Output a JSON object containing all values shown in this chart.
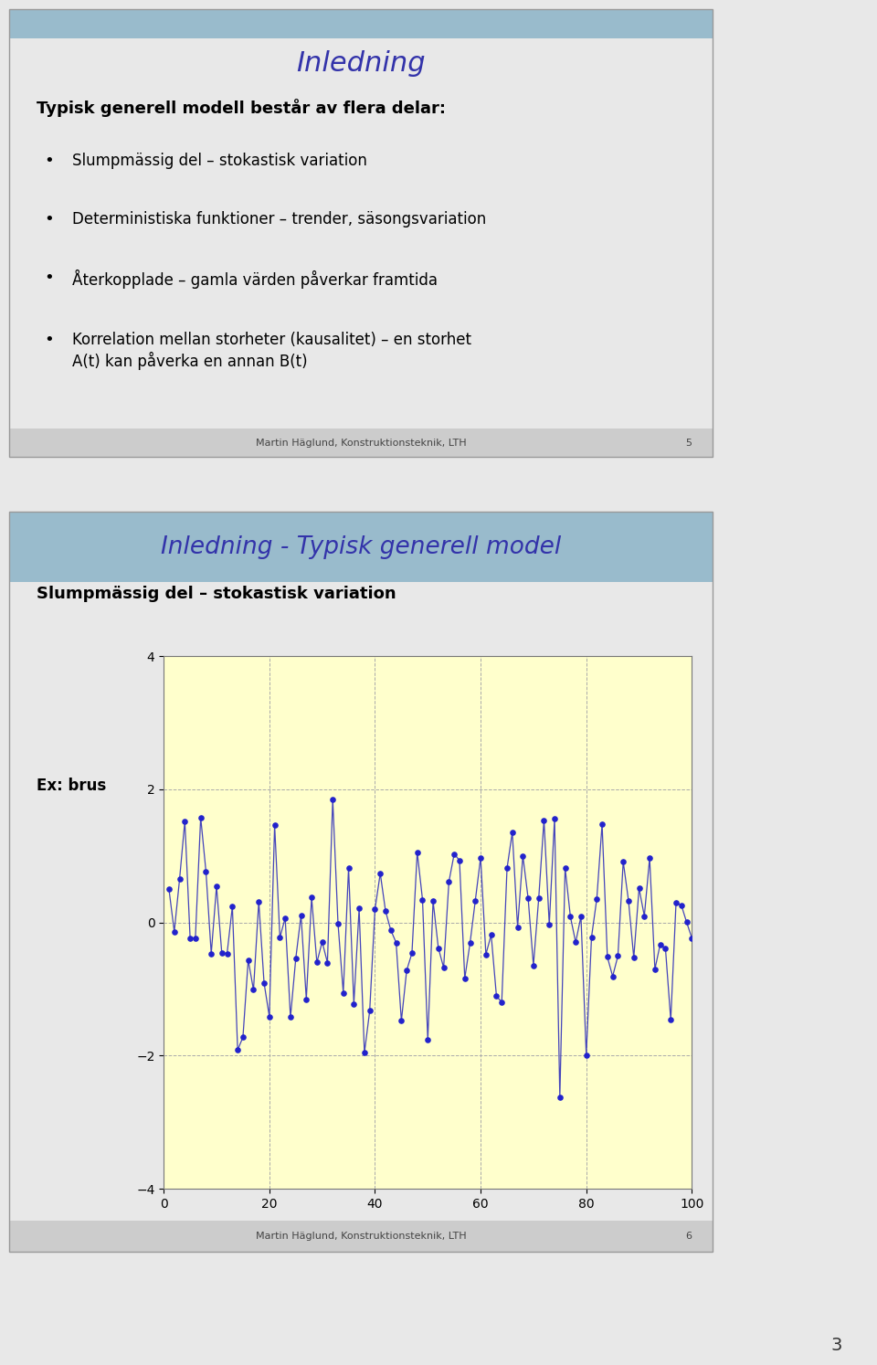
{
  "page_bg": "#e8e8e8",
  "slide1_bg": "#ffffcc",
  "slide1_header_bg": "#99bbcc",
  "slide1_title": "Inledning",
  "slide1_title_color": "#3333aa",
  "slide1_body_color": "#000000",
  "slide1_body_text": "Typisk generell modell består av flera delar:",
  "slide1_bullets": [
    "Slumpmässig del – stokastisk variation",
    "Deterministiska funktioner – trender, säsongsvariation",
    "Återkopplade – gamla värden påverkar framtida",
    "Korrelation mellan storheter (kausalitet) – en storhet\nA(t) kan påverka en annan B(t)"
  ],
  "slide1_footer": "Martin Häglund, Konstruktionsteknik, LTH",
  "slide1_page_num": "5",
  "slide2_bg": "#ffffcc",
  "slide2_header_bg": "#99bbcc",
  "slide2_title": "Inledning - Typisk generell model",
  "slide2_title_color": "#3333aa",
  "slide2_subtitle": "Slumpmässig del – stokastisk variation",
  "slide2_label": "Ex: brus",
  "slide2_footer": "Martin Häglund, Konstruktionsteknik, LTH",
  "slide2_page_num": "6",
  "page_num": "3",
  "plot_xlim": [
    0,
    100
  ],
  "plot_ylim": [
    -4,
    4
  ],
  "plot_yticks": [
    -4,
    -2,
    0,
    2,
    4
  ],
  "plot_xticks": [
    0,
    20,
    40,
    60,
    80,
    100
  ],
  "plot_bg": "#ffffcc",
  "line_color": "#4444bb",
  "dot_color": "#2222cc",
  "grid_color": "#aaaaaa",
  "footer_bg": "#cccccc"
}
